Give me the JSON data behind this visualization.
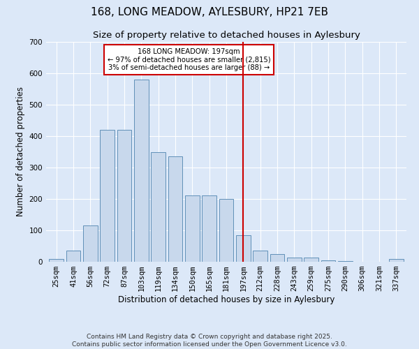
{
  "title": "168, LONG MEADOW, AYLESBURY, HP21 7EB",
  "subtitle": "Size of property relative to detached houses in Aylesbury",
  "xlabel": "Distribution of detached houses by size in Aylesbury",
  "ylabel": "Number of detached properties",
  "categories": [
    "25sqm",
    "41sqm",
    "56sqm",
    "72sqm",
    "87sqm",
    "103sqm",
    "119sqm",
    "134sqm",
    "150sqm",
    "165sqm",
    "181sqm",
    "197sqm",
    "212sqm",
    "228sqm",
    "243sqm",
    "259sqm",
    "275sqm",
    "290sqm",
    "306sqm",
    "321sqm",
    "337sqm"
  ],
  "values": [
    8,
    35,
    115,
    420,
    420,
    580,
    350,
    335,
    212,
    212,
    200,
    85,
    35,
    25,
    13,
    13,
    5,
    2,
    1,
    1,
    8
  ],
  "bar_color": "#c8d8ec",
  "bar_edge_color": "#6090b8",
  "marker_index": 11,
  "marker_color": "#cc0000",
  "annotation_text": "168 LONG MEADOW: 197sqm\n← 97% of detached houses are smaller (2,815)\n3% of semi-detached houses are larger (88) →",
  "annotation_box_facecolor": "#ffffff",
  "annotation_box_edgecolor": "#cc0000",
  "ylim": [
    0,
    700
  ],
  "yticks": [
    0,
    100,
    200,
    300,
    400,
    500,
    600,
    700
  ],
  "background_color": "#dce8f8",
  "grid_color": "#ffffff",
  "footer_line1": "Contains HM Land Registry data © Crown copyright and database right 2025.",
  "footer_line2": "Contains public sector information licensed under the Open Government Licence v3.0.",
  "title_fontsize": 11,
  "subtitle_fontsize": 9.5,
  "label_fontsize": 8.5,
  "tick_fontsize": 7.5,
  "footer_fontsize": 6.5
}
